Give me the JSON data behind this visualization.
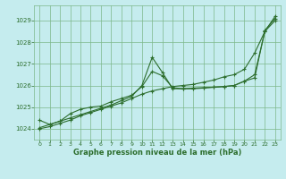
{
  "xlabel": "Graphe pression niveau de la mer (hPa)",
  "bg_color": "#c5ecee",
  "grid_color": "#7db88a",
  "line_color": "#2d6e2d",
  "xlim": [
    -0.5,
    23.5
  ],
  "ylim": [
    1023.5,
    1029.7
  ],
  "yticks": [
    1024,
    1025,
    1026,
    1027,
    1028,
    1029
  ],
  "xticks": [
    0,
    1,
    2,
    3,
    4,
    5,
    6,
    7,
    8,
    9,
    10,
    11,
    12,
    13,
    14,
    15,
    16,
    17,
    18,
    19,
    20,
    21,
    22,
    23
  ],
  "series1": {
    "x": [
      0,
      1,
      2,
      3,
      4,
      5,
      6,
      7,
      8,
      9,
      10,
      11,
      12,
      13,
      14,
      15,
      16,
      17,
      18,
      19,
      20,
      21,
      22,
      23
    ],
    "y": [
      1024.0,
      1024.1,
      1024.25,
      1024.4,
      1024.6,
      1024.75,
      1024.9,
      1025.05,
      1025.2,
      1025.4,
      1025.6,
      1025.75,
      1025.85,
      1025.95,
      1026.0,
      1026.05,
      1026.15,
      1026.25,
      1026.4,
      1026.5,
      1026.75,
      1027.5,
      1028.5,
      1029.2
    ]
  },
  "series2": {
    "x": [
      0,
      1,
      2,
      3,
      4,
      5,
      6,
      7,
      8,
      9,
      10,
      11,
      12,
      13,
      14,
      15,
      16,
      17,
      18,
      19,
      20,
      21,
      22,
      23
    ],
    "y": [
      1024.05,
      1024.2,
      1024.35,
      1024.5,
      1024.65,
      1024.8,
      1024.95,
      1025.1,
      1025.3,
      1025.5,
      1026.0,
      1027.3,
      1026.6,
      1025.85,
      1025.85,
      1025.85,
      1025.88,
      1025.92,
      1025.95,
      1026.0,
      1026.2,
      1026.35,
      1028.55,
      1029.1
    ]
  },
  "series3": {
    "x": [
      0,
      1,
      2,
      3,
      4,
      5,
      6,
      7,
      8,
      9,
      10,
      11,
      12,
      13,
      14,
      15,
      16,
      17,
      18,
      19,
      20,
      21,
      22,
      23
    ],
    "y": [
      1024.4,
      1024.2,
      1024.35,
      1024.7,
      1024.9,
      1025.0,
      1025.05,
      1025.25,
      1025.4,
      1025.55,
      1025.95,
      1026.65,
      1026.45,
      1025.9,
      1025.85,
      1025.88,
      1025.9,
      1025.92,
      1025.95,
      1026.0,
      1026.2,
      1026.5,
      1028.5,
      1029.0
    ]
  }
}
